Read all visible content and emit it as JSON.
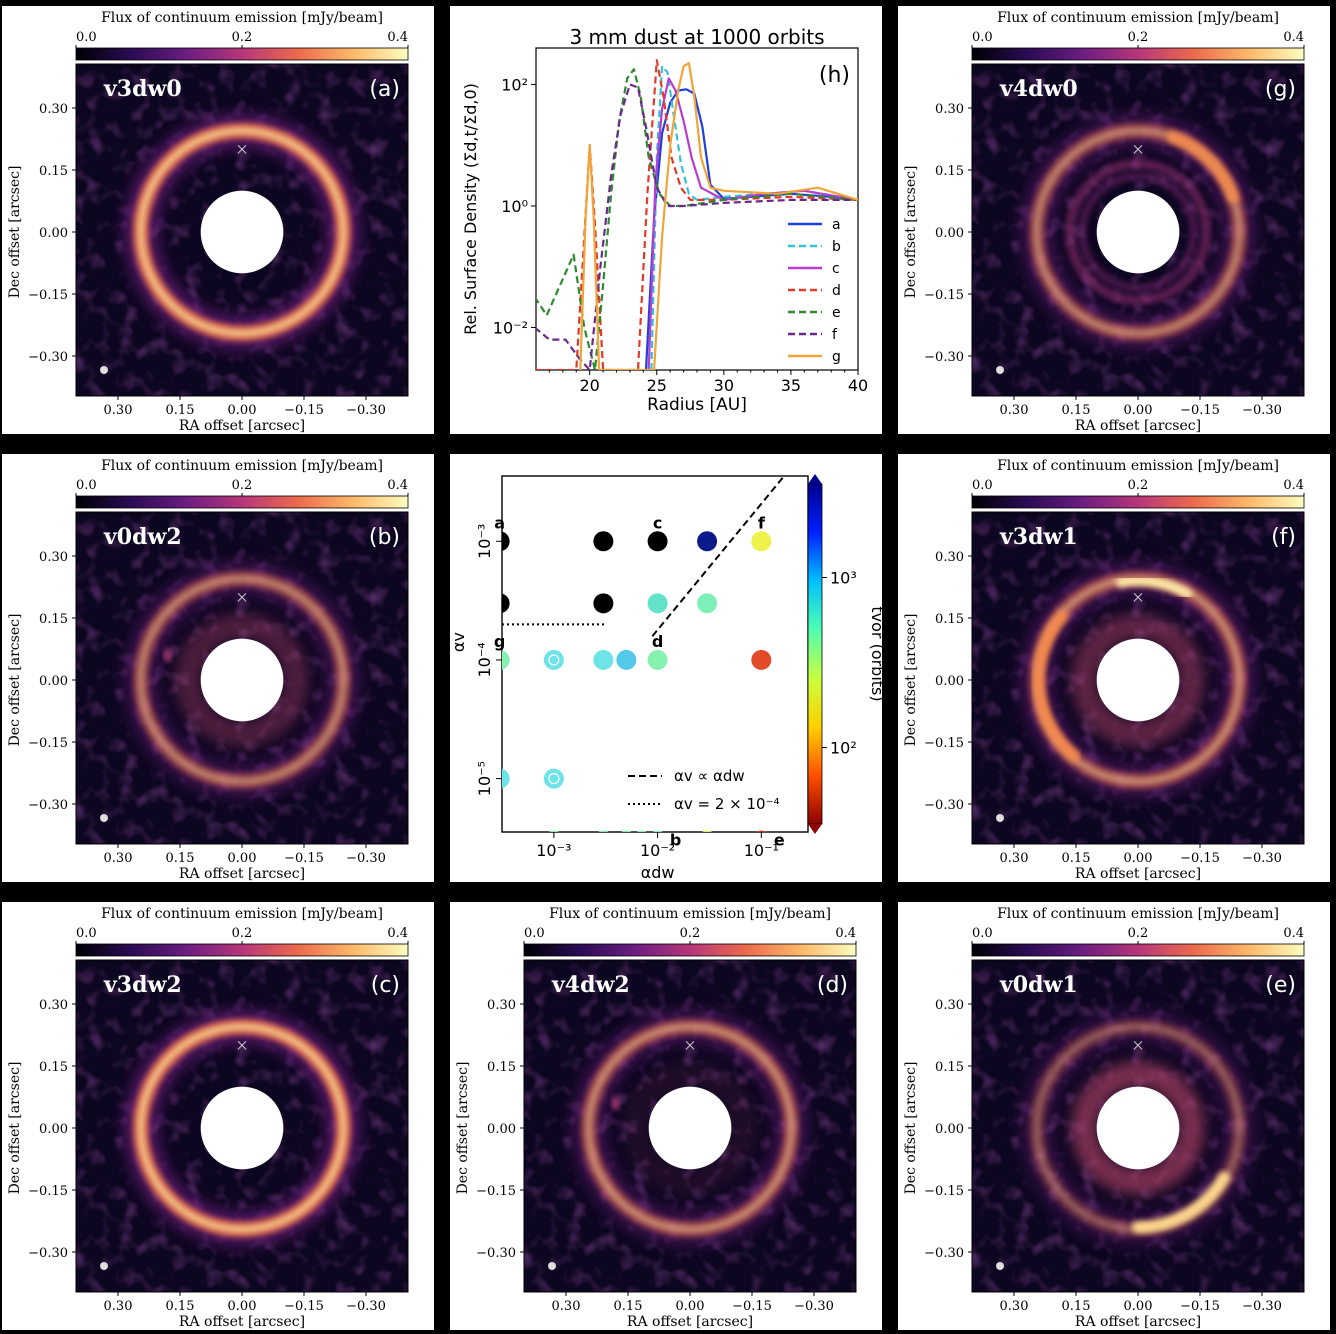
{
  "colors": {
    "frame_bg": "#000000",
    "panel_bg": "#ffffff",
    "image_bg": "#0d0620",
    "ring_inner": "#fbe8b0",
    "ring_mid": "#f07f52",
    "ring_outer": "#7d2c7c",
    "cbar": [
      "#000004",
      "#2a0b54",
      "#6b1d81",
      "#b5367a",
      "#ec6a4c",
      "#fcb86a",
      "#fcfdbf"
    ]
  },
  "image_panels": [
    {
      "id": "a",
      "model": "v3dw0",
      "tag": "(a)",
      "cbar_title": "Flux of continuum emission [mJy/beam]",
      "cbar_ticks": [
        "0.0",
        "0.2",
        "0.4"
      ],
      "ylabel": "Dec offset [arcsec]",
      "xlabel": "RA offset [arcsec]",
      "yticks": [
        "0.30",
        "0.15",
        "0.00",
        "−0.15",
        "−0.30"
      ],
      "xticks": [
        "0.30",
        "0.15",
        "0.00",
        "−0.15",
        "−0.30"
      ],
      "ring_outer_strength": 1.0,
      "ring_inner_strength": 0.0,
      "inner_disk_glow": 0.0,
      "hot_spot": "none",
      "vortex_arc": "none"
    },
    {
      "id": "b",
      "model": "v0dw2",
      "tag": "(b)",
      "cbar_title": "Flux of continuum emission [mJy/beam]",
      "cbar_ticks": [
        "0.0",
        "0.2",
        "0.4"
      ],
      "ylabel": "Dec offset [arcsec]",
      "xlabel": "RA offset [arcsec]",
      "yticks": [
        "0.30",
        "0.15",
        "0.00",
        "−0.15",
        "−0.30"
      ],
      "xticks": [
        "0.30",
        "0.15",
        "0.00",
        "−0.15",
        "−0.30"
      ],
      "ring_outer_strength": 0.55,
      "ring_inner_strength": 0.0,
      "inner_disk_glow": 0.35,
      "hot_spot": "left-small",
      "vortex_arc": "none"
    },
    {
      "id": "c",
      "model": "v3dw2",
      "tag": "(c)",
      "cbar_title": "Flux of continuum emission [mJy/beam]",
      "cbar_ticks": [
        "0.0",
        "0.2",
        "0.4"
      ],
      "ylabel": "Dec offset [arcsec]",
      "xlabel": "RA offset [arcsec]",
      "yticks": [
        "0.30",
        "0.15",
        "0.00",
        "−0.15",
        "−0.30"
      ],
      "xticks": [
        "0.30",
        "0.15",
        "0.00",
        "−0.15",
        "−0.30"
      ],
      "ring_outer_strength": 1.0,
      "ring_inner_strength": 0.0,
      "inner_disk_glow": 0.0,
      "hot_spot": "none",
      "vortex_arc": "none"
    },
    {
      "id": "h",
      "model": "",
      "tag": "(h)"
    },
    {
      "id": "grid",
      "model": "",
      "tag": ""
    },
    {
      "id": "d",
      "model": "v4dw2",
      "tag": "(d)",
      "cbar_title": "Flux of continuum emission [mJy/beam]",
      "cbar_ticks": [
        "0.0",
        "0.2",
        "0.4"
      ],
      "ylabel": "Dec offset [arcsec]",
      "xlabel": "RA offset [arcsec]",
      "yticks": [
        "0.30",
        "0.15",
        "0.00",
        "−0.15",
        "−0.30"
      ],
      "xticks": [
        "0.30",
        "0.15",
        "0.00",
        "−0.15",
        "−0.30"
      ],
      "ring_outer_strength": 0.6,
      "ring_inner_strength": 0.0,
      "inner_disk_glow": 0.1,
      "hot_spot": "left-small",
      "vortex_arc": "none"
    },
    {
      "id": "g",
      "model": "v4dw0",
      "tag": "(g)",
      "cbar_title": "Flux of continuum emission [mJy/beam]",
      "cbar_ticks": [
        "0.0",
        "0.2",
        "0.4"
      ],
      "ylabel": "Dec offset [arcsec]",
      "xlabel": "RA offset [arcsec]",
      "yticks": [
        "0.30",
        "0.15",
        "0.00",
        "−0.15",
        "−0.30"
      ],
      "xticks": [
        "0.30",
        "0.15",
        "0.00",
        "−0.15",
        "−0.30"
      ],
      "ring_outer_strength": 0.55,
      "ring_inner_strength": 0.5,
      "inner_disk_glow": 0.0,
      "hot_spot": "none",
      "vortex_arc": "top-right"
    },
    {
      "id": "f",
      "model": "v3dw1",
      "tag": "(f)",
      "cbar_title": "Flux of continuum emission [mJy/beam]",
      "cbar_ticks": [
        "0.0",
        "0.2",
        "0.4"
      ],
      "ylabel": "Dec offset [arcsec]",
      "xlabel": "RA offset [arcsec]",
      "yticks": [
        "0.30",
        "0.15",
        "0.00",
        "−0.15",
        "−0.30"
      ],
      "xticks": [
        "0.30",
        "0.15",
        "0.00",
        "−0.15",
        "−0.30"
      ],
      "ring_outer_strength": 0.6,
      "ring_inner_strength": 0.0,
      "inner_disk_glow": 0.45,
      "hot_spot": "none",
      "vortex_arc": "top-left"
    },
    {
      "id": "e",
      "model": "v0dw1",
      "tag": "(e)",
      "cbar_title": "Flux of continuum emission [mJy/beam]",
      "cbar_ticks": [
        "0.0",
        "0.2",
        "0.4"
      ],
      "ylabel": "Dec offset [arcsec]",
      "xlabel": "RA offset [arcsec]",
      "yticks": [
        "0.30",
        "0.15",
        "0.00",
        "−0.15",
        "−0.30"
      ],
      "xticks": [
        "0.30",
        "0.15",
        "0.00",
        "−0.15",
        "−0.30"
      ],
      "ring_outer_strength": 0.35,
      "ring_inner_strength": 0.0,
      "inner_disk_glow": 0.6,
      "hot_spot": "none",
      "vortex_arc": "bottom-right"
    }
  ],
  "chart_data": [
    {
      "type": "line",
      "panel": "h",
      "title": "3 mm dust at 1000 orbits",
      "tag": "(h)",
      "xlabel": "Radius [AU]",
      "ylabel": "Rel. Surface Density (Σd,t/Σd,0)",
      "xlim": [
        16,
        40
      ],
      "ylim_log10": [
        -2.7,
        2.6
      ],
      "yscale": "log",
      "xticks": [
        "20",
        "25",
        "30",
        "35",
        "40"
      ],
      "yticks": [
        "10²",
        "10⁰",
        "10⁻²"
      ],
      "ytick_values": [
        2,
        0,
        -2
      ],
      "legend_position": "lower right",
      "series": [
        {
          "name": "a",
          "color": "#1f3fe0",
          "dash": "solid",
          "x": [
            24.2,
            24.8,
            25.4,
            26.0,
            26.6,
            27.2,
            27.8,
            28.4,
            29.0,
            30,
            32,
            35,
            38,
            40
          ],
          "log_y": [
            -2.7,
            -0.2,
            1.2,
            1.7,
            1.9,
            1.92,
            1.85,
            1.3,
            0.35,
            0.12,
            0.15,
            0.2,
            0.15,
            0.1
          ]
        },
        {
          "name": "b",
          "color": "#35c2d8",
          "dash": "dashed",
          "x": [
            24.6,
            25.0,
            25.4,
            25.8,
            26.2,
            26.8,
            27.4,
            28,
            30,
            33,
            36,
            40
          ],
          "log_y": [
            -2.7,
            0.8,
            2.3,
            2.2,
            1.6,
            0.7,
            0.2,
            0.1,
            0.15,
            0.2,
            0.25,
            0.1
          ]
        },
        {
          "name": "c",
          "color": "#b73ccf",
          "dash": "solid",
          "x": [
            24.4,
            24.9,
            25.4,
            25.9,
            26.4,
            27.0,
            27.6,
            28.3,
            30,
            33,
            36,
            40
          ],
          "log_y": [
            -2.7,
            0.4,
            1.6,
            2.1,
            1.9,
            1.4,
            0.8,
            0.3,
            0.1,
            0.2,
            0.25,
            0.1
          ]
        },
        {
          "name": "d",
          "color": "#e03a2a",
          "dash": "dashed",
          "x": [
            15.9,
            19.0,
            19.6,
            20.0,
            20.4,
            21.0,
            23.6,
            24.3,
            25.0,
            25.5,
            26.1,
            26.8,
            27.5,
            30,
            35,
            40
          ],
          "log_y": [
            -2.7,
            -2.7,
            -0.5,
            1.0,
            -0.3,
            -2.7,
            -2.7,
            0.2,
            2.4,
            1.8,
            0.8,
            0.3,
            0.1,
            0.1,
            0.15,
            0.1
          ]
        },
        {
          "name": "e",
          "color": "#2e8a2e",
          "dash": "dashed",
          "x": [
            15.9,
            16.8,
            17.8,
            18.8,
            19.6,
            20.4,
            21.0,
            21.6,
            22.2,
            22.8,
            23.3,
            23.8,
            24.4,
            25.2,
            26.0,
            27.0,
            30,
            35,
            40
          ],
          "log_y": [
            -1.5,
            -1.8,
            -1.3,
            -0.8,
            -2.0,
            -2.7,
            -1.3,
            0.2,
            1.4,
            2.1,
            2.25,
            1.8,
            0.8,
            0.2,
            0.0,
            0.0,
            0.1,
            0.2,
            0.1
          ]
        },
        {
          "name": "f",
          "color": "#6a2a8a",
          "dash": "dashed",
          "x": [
            15.9,
            17.0,
            18.2,
            19.2,
            20.0,
            20.8,
            21.6,
            22.3,
            23.0,
            23.6,
            24.2,
            25.0,
            25.8,
            27,
            30,
            35,
            40
          ],
          "log_y": [
            -2.0,
            -2.2,
            -2.2,
            -2.5,
            -2.7,
            -1.0,
            0.5,
            1.5,
            2.0,
            1.95,
            1.3,
            0.3,
            0.0,
            0.0,
            0.05,
            0.1,
            0.1
          ]
        },
        {
          "name": "g",
          "color": "#f0a43a",
          "dash": "solid",
          "x": [
            19.3,
            19.7,
            20.0,
            20.3,
            20.7,
            24.8,
            25.4,
            26.0,
            26.6,
            27.0,
            27.4,
            27.8,
            28.3,
            29.0,
            30,
            34,
            37,
            40
          ],
          "log_y": [
            -2.7,
            -0.2,
            1.0,
            -0.2,
            -2.7,
            -2.7,
            -0.5,
            1.0,
            1.9,
            2.3,
            2.35,
            1.8,
            0.8,
            0.3,
            0.25,
            0.2,
            0.3,
            0.1
          ]
        }
      ]
    },
    {
      "type": "scatter",
      "panel": "grid",
      "xlabel": "αdw",
      "ylabel": "αv",
      "xscale": "log",
      "yscale": "log",
      "xlim_log10": [
        -3.5,
        -0.55
      ],
      "ylim_log10": [
        -5.45,
        -2.45
      ],
      "xticks": [
        "10⁻³",
        "10⁻²",
        "10⁻¹"
      ],
      "xtick_values": [
        -3,
        -2,
        -1
      ],
      "yticks": [
        "10⁻³",
        "10⁻⁴",
        "10⁻⁵"
      ],
      "ytick_values": [
        -3,
        -4,
        -5
      ],
      "colorbar_label": "tvor (orbits)",
      "colorbar_ticks": [
        "10³",
        "10²"
      ],
      "colorbar_tick_values": [
        3,
        2
      ],
      "colorbar_range_log10": [
        1.55,
        3.55
      ],
      "legend": [
        "αv ∝ αdw",
        "αv = 2 × 10⁻⁴"
      ],
      "legend_position": "lower right",
      "points": [
        {
          "adw": 0.0003,
          "av": 0.001,
          "color": "#000000",
          "hollow": false,
          "label": "a"
        },
        {
          "adw": 0.003,
          "av": 0.001,
          "color": "#000000",
          "hollow": false,
          "label": ""
        },
        {
          "adw": 0.01,
          "av": 0.001,
          "color": "#000000",
          "hollow": false,
          "label": "c"
        },
        {
          "adw": 0.03,
          "av": 0.001,
          "color": "#0a1a8a",
          "hollow": false,
          "label": ""
        },
        {
          "adw": 0.1,
          "av": 0.001,
          "color": "#eef24a",
          "hollow": false,
          "label": "f"
        },
        {
          "adw": 0.0003,
          "av": 0.0003,
          "color": "#000000",
          "hollow": false,
          "label": ""
        },
        {
          "adw": 0.003,
          "av": 0.0003,
          "color": "#000000",
          "hollow": false,
          "label": ""
        },
        {
          "adw": 0.01,
          "av": 0.0003,
          "color": "#62e3c8",
          "hollow": false,
          "label": ""
        },
        {
          "adw": 0.03,
          "av": 0.0003,
          "color": "#7df0b8",
          "hollow": false,
          "label": ""
        },
        {
          "adw": 0.0003,
          "av": 0.0001,
          "color": "#86f2b0",
          "hollow": false,
          "label": "g"
        },
        {
          "adw": 0.001,
          "av": 0.0001,
          "color": "#6ee3e8",
          "hollow": true,
          "label": ""
        },
        {
          "adw": 0.003,
          "av": 0.0001,
          "color": "#6ee3e8",
          "hollow": false,
          "label": ""
        },
        {
          "adw": 0.005,
          "av": 0.0001,
          "color": "#53c8e8",
          "hollow": false,
          "label": ""
        },
        {
          "adw": 0.01,
          "av": 0.0001,
          "color": "#86f2b0",
          "hollow": false,
          "label": "d"
        },
        {
          "adw": 0.1,
          "av": 0.0001,
          "color": "#e24a2a",
          "hollow": false,
          "label": ""
        },
        {
          "adw": 0.0003,
          "av": 1e-05,
          "color": "#6ee3e8",
          "hollow": false,
          "label": ""
        },
        {
          "adw": 0.001,
          "av": 1e-05,
          "color": "#6ee3e8",
          "hollow": true,
          "label": ""
        },
        {
          "adw": 0.001,
          "av": 3e-06,
          "color": "#86f2b0",
          "hollow": false,
          "label": ""
        },
        {
          "adw": 0.003,
          "av": 3e-06,
          "color": "#86f2b0",
          "hollow": false,
          "label": ""
        },
        {
          "adw": 0.005,
          "av": 3e-06,
          "color": "#86f2b0",
          "hollow": false,
          "label": ""
        },
        {
          "adw": 0.007,
          "av": 3e-06,
          "color": "#86f2b0",
          "hollow": false,
          "label": ""
        },
        {
          "adw": 0.01,
          "av": 3e-06,
          "color": "#86f2b0",
          "hollow": false,
          "label": "b"
        },
        {
          "adw": 0.03,
          "av": 3e-06,
          "color": "#d8f25a",
          "hollow": false,
          "label": ""
        },
        {
          "adw": 0.1,
          "av": 3e-06,
          "color": "#d62a1a",
          "hollow": false,
          "label": "e"
        }
      ],
      "dashed_line": [
        [
          -2.05,
          -3.8
        ],
        [
          -0.78,
          -2.45
        ]
      ],
      "dotted_line": [
        [
          -3.5,
          -3.7
        ],
        [
          -2.5,
          -3.7
        ]
      ]
    }
  ]
}
